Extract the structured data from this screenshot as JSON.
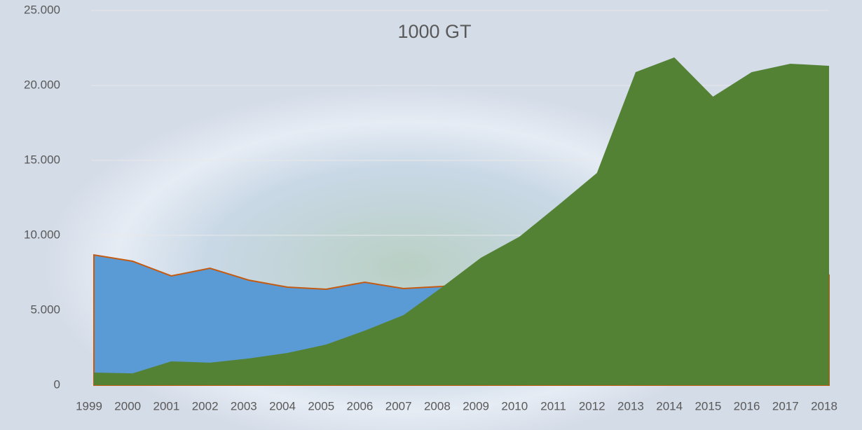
{
  "chart_data": {
    "type": "area",
    "title": "1000  GT",
    "categories": [
      "1999",
      "2000",
      "2001",
      "2002",
      "2003",
      "2004",
      "2005",
      "2006",
      "2007",
      "2008",
      "2009",
      "2010",
      "2011",
      "2012",
      "2013",
      "2014",
      "2015",
      "2016",
      "2017",
      "2018"
    ],
    "series": [
      {
        "color": "#5b9bd5",
        "stroke": "#c55a11",
        "values": [
          8690,
          8270,
          7290,
          7800,
          7010,
          6540,
          6400,
          6870,
          6450,
          6590,
          6800,
          6900,
          7000,
          7000,
          7100,
          7100,
          7200,
          7200,
          7300,
          7340
        ]
      },
      {
        "color": "#548235",
        "values": [
          840,
          790,
          1590,
          1500,
          1780,
          2150,
          2710,
          3640,
          4670,
          6540,
          8500,
          9910,
          12010,
          14160,
          20890,
          21870,
          19250,
          20890,
          21450,
          21310
        ]
      }
    ],
    "ylim": [
      0,
      25000
    ],
    "yticks": [
      0,
      {
        "value": 5000,
        "label": "5.000"
      },
      {
        "value": 10000,
        "label": "10.000"
      },
      {
        "value": 15000,
        "label": "15.000"
      },
      {
        "value": 20000,
        "label": "20.000"
      },
      {
        "value": 25000,
        "label": "25.000"
      }
    ],
    "grid": true
  }
}
